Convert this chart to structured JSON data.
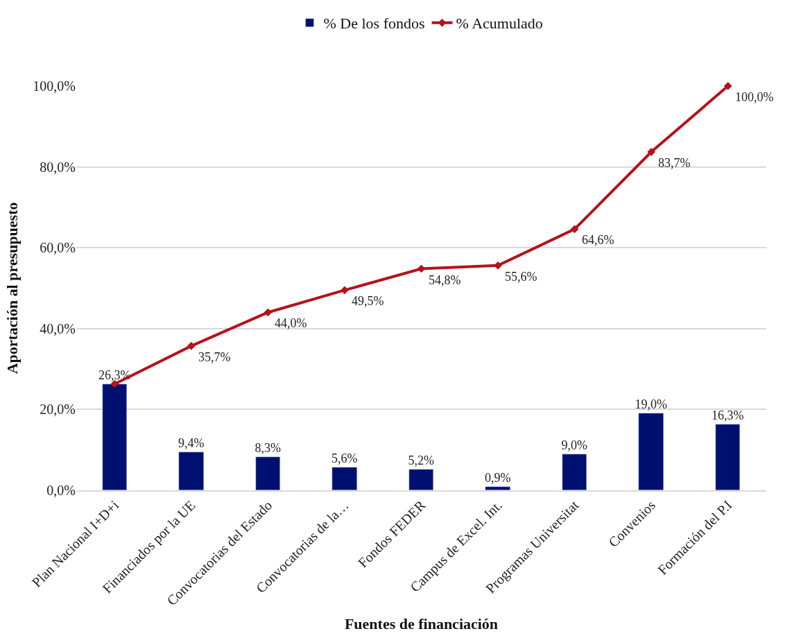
{
  "chart_data": {
    "type": "bar",
    "xlabel": "Fuentes de financiación",
    "ylabel": "Aportación al presupuesto",
    "categories": [
      "Plan Nacional I+D+i",
      "Financiados por la UE",
      "Convocatorias del Estado",
      "Convocatorias de la…",
      "Fondos FEDER",
      "Campus de Excel. Int.",
      "Programas Universitat",
      "Convenios",
      "Formación del P.I"
    ],
    "series": [
      {
        "name": "% De los fondos",
        "color": "#001070",
        "values": [
          26.3,
          9.4,
          8.3,
          5.6,
          5.2,
          0.9,
          9.0,
          19.0,
          16.3
        ],
        "value_labels": [
          "26,3%",
          "9,4%",
          "8,3%",
          "5,6%",
          "5,2%",
          "0,9%",
          "9,0%",
          "19,0%",
          "16,3%"
        ]
      },
      {
        "name": "% Acumulado",
        "type": "line",
        "color": "#b5121b",
        "marker": "diamond",
        "values": [
          26.3,
          35.7,
          44.0,
          49.5,
          54.8,
          55.6,
          64.6,
          83.7,
          100.0
        ],
        "value_labels": [
          null,
          "35,7%",
          "44,0%",
          "49,5%",
          "54,8%",
          "55,6%",
          "64,6%",
          "83,7%",
          "100,0%"
        ]
      }
    ],
    "ylim": [
      0,
      100
    ],
    "yticks": [
      {
        "value": 0,
        "label": "0,0%"
      },
      {
        "value": 20,
        "label": "20,0%"
      },
      {
        "value": 40,
        "label": "40,0%"
      },
      {
        "value": 60,
        "label": "60,0%"
      },
      {
        "value": 80,
        "label": "80,0%"
      },
      {
        "value": 100,
        "label": "100,0%"
      }
    ],
    "grid": "y",
    "legend": "top"
  }
}
